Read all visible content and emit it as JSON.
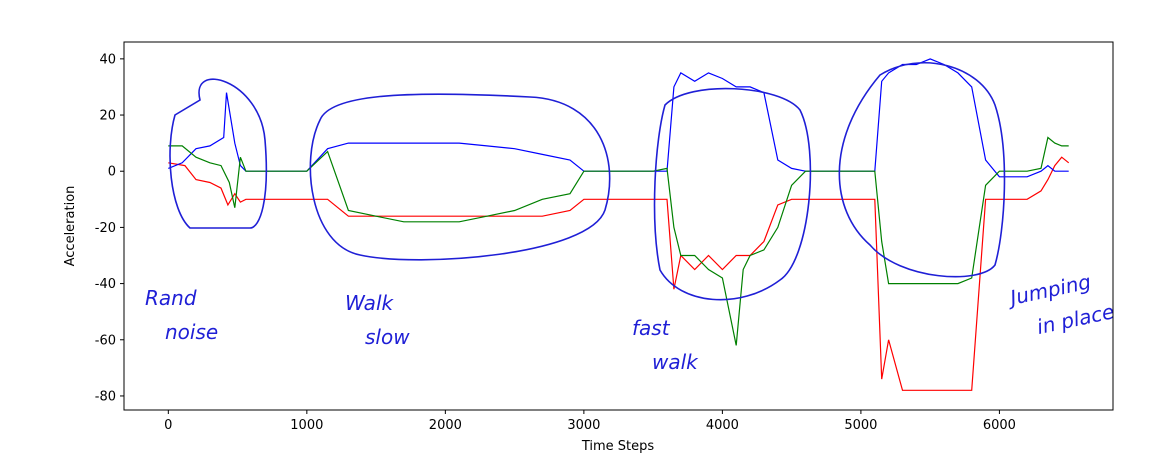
{
  "chart_data": {
    "type": "line",
    "title": "",
    "xlabel": "Time Steps",
    "ylabel": "Acceleration",
    "xlim": [
      -320,
      6820
    ],
    "ylim": [
      -85,
      46
    ],
    "x_ticks": [
      0,
      1000,
      2000,
      3000,
      4000,
      5000,
      6000
    ],
    "y_ticks": [
      -80,
      -60,
      -40,
      -20,
      0,
      20,
      40
    ],
    "grid": false,
    "legend": "none",
    "series": [
      {
        "color": "#ff0000",
        "x": [
          0,
          120,
          200,
          300,
          380,
          430,
          480,
          520,
          560,
          600,
          700,
          1000,
          1150,
          1300,
          1500,
          1700,
          1900,
          2100,
          2300,
          2500,
          2700,
          2900,
          3000,
          3200,
          3500,
          3600,
          3650,
          3700,
          3800,
          3900,
          4000,
          4100,
          4200,
          4300,
          4400,
          4500,
          4600,
          4800,
          5000,
          5100,
          5150,
          5200,
          5300,
          5400,
          5500,
          5600,
          5700,
          5800,
          5900,
          6000,
          6200,
          6300,
          6350,
          6400,
          6450,
          6500
        ],
        "y": [
          3,
          2,
          -3,
          -4,
          -6,
          -12,
          -8,
          -11,
          -10,
          -10,
          -10,
          -10,
          -10,
          -16,
          -16,
          -16,
          -16,
          -16,
          -16,
          -16,
          -16,
          -14,
          -10,
          -10,
          -10,
          -10,
          -42,
          -30,
          -35,
          -30,
          -35,
          -30,
          -30,
          -25,
          -12,
          -10,
          -10,
          -10,
          -10,
          -10,
          -74,
          -60,
          -78,
          -78,
          -78,
          -78,
          -78,
          -78,
          -10,
          -10,
          -10,
          -7,
          -3,
          2,
          5,
          3
        ]
      },
      {
        "color": "#0000ff",
        "x": [
          0,
          100,
          200,
          300,
          400,
          420,
          480,
          520,
          560,
          600,
          700,
          1000,
          1150,
          1300,
          1500,
          1700,
          1900,
          2100,
          2300,
          2500,
          2700,
          2900,
          3000,
          3200,
          3500,
          3600,
          3650,
          3700,
          3800,
          3900,
          4000,
          4100,
          4200,
          4300,
          4400,
          4500,
          4600,
          4800,
          5000,
          5100,
          5150,
          5200,
          5300,
          5400,
          5500,
          5600,
          5700,
          5800,
          5900,
          6000,
          6200,
          6300,
          6350,
          6400,
          6450,
          6500
        ],
        "y": [
          1,
          3,
          8,
          9,
          12,
          28,
          10,
          2,
          0,
          0,
          0,
          0,
          8,
          10,
          10,
          10,
          10,
          10,
          9,
          8,
          6,
          4,
          0,
          0,
          0,
          0,
          30,
          35,
          32,
          35,
          33,
          30,
          30,
          28,
          4,
          1,
          0,
          0,
          0,
          0,
          32,
          35,
          38,
          38,
          40,
          38,
          35,
          30,
          4,
          -2,
          -2,
          0,
          2,
          0,
          0,
          0
        ]
      },
      {
        "color": "#008000",
        "x": [
          0,
          100,
          200,
          300,
          380,
          440,
          480,
          520,
          560,
          600,
          700,
          1000,
          1150,
          1300,
          1500,
          1700,
          1900,
          2100,
          2300,
          2500,
          2700,
          2900,
          3000,
          3200,
          3500,
          3600,
          3650,
          3700,
          3800,
          3900,
          4000,
          4100,
          4150,
          4200,
          4300,
          4400,
          4500,
          4600,
          4800,
          5000,
          5100,
          5150,
          5200,
          5300,
          5400,
          5500,
          5600,
          5700,
          5800,
          5900,
          6000,
          6200,
          6300,
          6350,
          6400,
          6450,
          6500
        ],
        "y": [
          9,
          9,
          5,
          3,
          2,
          -4,
          -13,
          5,
          0,
          0,
          0,
          0,
          7,
          -14,
          -16,
          -18,
          -18,
          -18,
          -16,
          -14,
          -10,
          -8,
          0,
          0,
          0,
          1,
          -20,
          -30,
          -30,
          -35,
          -38,
          -62,
          -35,
          -30,
          -28,
          -20,
          -5,
          0,
          0,
          0,
          0,
          -25,
          -40,
          -40,
          -40,
          -40,
          -40,
          -40,
          -38,
          -5,
          0,
          0,
          1,
          12,
          10,
          9,
          9
        ]
      }
    ],
    "annotations": [
      "Rand noise",
      "Walk slow",
      "fast walk",
      "Jumping in place"
    ]
  }
}
